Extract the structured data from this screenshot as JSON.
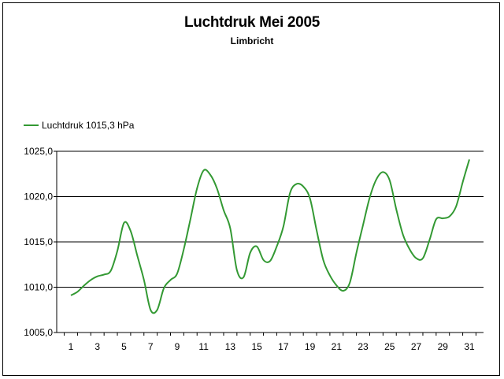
{
  "chart_data": {
    "type": "line",
    "title": "Luchtdruk Mei 2005",
    "subtitle": "Limbricht",
    "xlabel": "",
    "ylabel": "",
    "legend": {
      "position": "top-left"
    },
    "grid": {
      "horizontal": true,
      "vertical": false
    },
    "ylim": [
      1005.0,
      1025.0
    ],
    "yticks": [
      1005.0,
      1010.0,
      1015.0,
      1020.0,
      1025.0
    ],
    "ytick_labels": [
      "1005,0",
      "1010,0",
      "1015,0",
      "1020,0",
      "1025,0"
    ],
    "xlim": [
      1,
      31
    ],
    "xticks": [
      1,
      3,
      5,
      7,
      9,
      11,
      13,
      15,
      17,
      19,
      21,
      23,
      25,
      27,
      29,
      31
    ],
    "series": [
      {
        "name": "Luchtdruk 1015,3 hPa",
        "color": "#339933",
        "x": [
          1,
          1.5,
          2,
          2.5,
          3,
          3.5,
          4,
          4.5,
          5,
          5.5,
          6,
          6.5,
          7,
          7.5,
          8,
          8.5,
          9,
          9.5,
          10,
          10.5,
          11,
          11.5,
          12,
          12.5,
          13,
          13.5,
          14,
          14.5,
          15,
          15.5,
          16,
          16.5,
          17,
          17.5,
          18,
          18.5,
          19,
          19.5,
          20,
          20.5,
          21,
          21.5,
          22,
          22.5,
          23,
          23.5,
          24,
          24.5,
          25,
          25.5,
          26,
          26.5,
          27,
          27.5,
          28,
          28.5,
          29,
          29.5,
          30,
          30.5,
          31
        ],
        "values": [
          1009.1,
          1009.5,
          1010.2,
          1010.8,
          1011.2,
          1011.4,
          1011.8,
          1014.0,
          1017.1,
          1016.2,
          1013.5,
          1010.8,
          1007.5,
          1007.5,
          1009.9,
          1010.8,
          1011.5,
          1014.2,
          1017.5,
          1020.9,
          1022.9,
          1022.4,
          1020.9,
          1018.5,
          1016.5,
          1011.9,
          1011.1,
          1013.8,
          1014.5,
          1013.0,
          1012.9,
          1014.5,
          1016.7,
          1020.4,
          1021.4,
          1021.1,
          1019.8,
          1016.3,
          1013.0,
          1011.3,
          1010.2,
          1009.6,
          1010.5,
          1013.8,
          1016.9,
          1019.9,
          1021.9,
          1022.7,
          1021.8,
          1018.6,
          1015.8,
          1014.2,
          1013.2,
          1013.2,
          1015.2,
          1017.5,
          1017.6,
          1017.8,
          1018.9,
          1021.6,
          1024.1
        ]
      }
    ]
  }
}
